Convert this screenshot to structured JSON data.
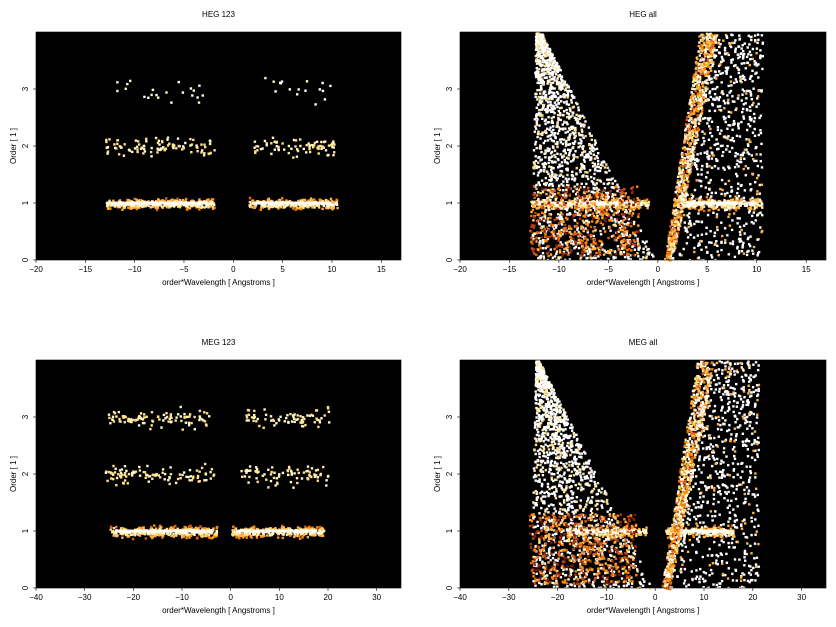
{
  "chart_data": [
    {
      "type": "heatmap",
      "title": "HEG 123",
      "xlabel": "order*Wavelength [ Angstroms ]",
      "ylabel": "Order [ 1 ]",
      "xlim": [
        -20,
        17
      ],
      "ylim": [
        0,
        4
      ],
      "xticks": [
        "−20",
        "−15",
        "−10",
        "−5",
        "0",
        "5",
        "10",
        "15"
      ],
      "yticks": [
        "0",
        "1",
        "2",
        "3"
      ],
      "background": "#000000",
      "bands": [
        {
          "order": 1,
          "x_ranges": [
            [
              -13,
              -2
            ],
            [
              1.5,
              10.5
            ]
          ],
          "intensity": "high"
        },
        {
          "order": 2,
          "x_ranges": [
            [
              -13,
              -2
            ],
            [
              2,
              10.5
            ]
          ],
          "intensity": "low"
        },
        {
          "order": 3,
          "x_ranges": [
            [
              -12,
              -3
            ],
            [
              3,
              10
            ]
          ],
          "intensity": "very-low"
        }
      ]
    },
    {
      "type": "heatmap",
      "title": "HEG all",
      "xlabel": "order*Wavelength [ Angstroms ]",
      "ylabel": "Order [ 1 ]",
      "xlim": [
        -20,
        17
      ],
      "ylim": [
        0,
        4
      ],
      "xticks": [
        "−20",
        "−15",
        "−10",
        "−5",
        "0",
        "5",
        "10",
        "15"
      ],
      "yticks": [
        "0",
        "1",
        "2",
        "3"
      ],
      "background": "#000000",
      "bands": [
        {
          "order": 1,
          "x_ranges": [
            [
              -13,
              -1
            ],
            [
              2,
              10.5
            ]
          ],
          "intensity": "high"
        }
      ]
    },
    {
      "type": "heatmap",
      "title": "MEG 123",
      "xlabel": "order*Wavelength [ Angstroms ]",
      "ylabel": "Order [ 1 ]",
      "xlim": [
        -40,
        35
      ],
      "ylim": [
        0,
        4
      ],
      "xticks": [
        "−40",
        "−30",
        "−20",
        "−10",
        "0",
        "10",
        "20",
        "30"
      ],
      "yticks": [
        "0",
        "1",
        "2",
        "3"
      ],
      "background": "#000000",
      "bands": [
        {
          "order": 1,
          "x_ranges": [
            [
              -25,
              -3
            ],
            [
              0,
              19
            ]
          ],
          "intensity": "high"
        },
        {
          "order": 2,
          "x_ranges": [
            [
              -26,
              -3
            ],
            [
              2,
              20
            ]
          ],
          "intensity": "low"
        },
        {
          "order": 3,
          "x_ranges": [
            [
              -26,
              -4
            ],
            [
              3,
              20
            ]
          ],
          "intensity": "low"
        }
      ]
    },
    {
      "type": "heatmap",
      "title": "MEG all",
      "xlabel": "order*Wavelength [ Angstroms ]",
      "ylabel": "Order [ 1 ]",
      "xlim": [
        -40,
        35
      ],
      "ylim": [
        0,
        4
      ],
      "xticks": [
        "−40",
        "−30",
        "−20",
        "−10",
        "0",
        "10",
        "20",
        "30"
      ],
      "yticks": [
        "0",
        "1",
        "2",
        "3"
      ],
      "background": "#000000",
      "bands": [
        {
          "order": 1,
          "x_ranges": [
            [
              -18,
              -2
            ],
            [
              2,
              16
            ]
          ],
          "intensity": "high"
        }
      ]
    }
  ]
}
